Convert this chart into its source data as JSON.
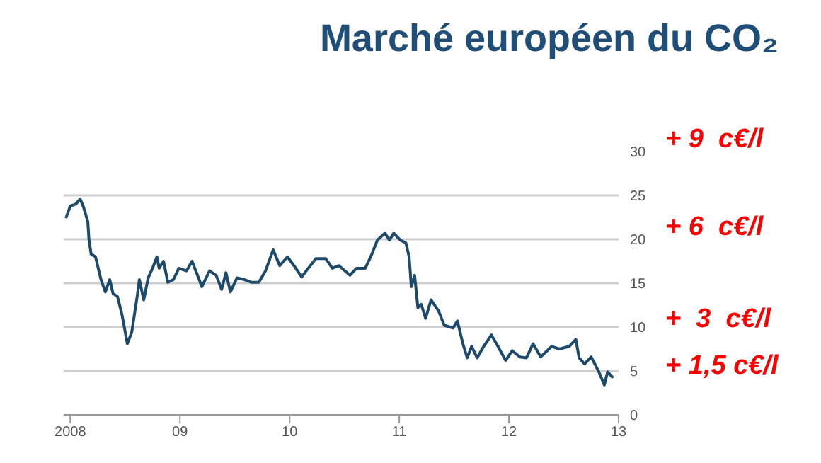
{
  "chart_data": {
    "type": "line",
    "title": "Marché européen du CO₂",
    "x": [
      2007.96,
      2008.0,
      2008.05,
      2008.09,
      2008.12,
      2008.16,
      2008.17,
      2008.19,
      2008.23,
      2008.28,
      2008.32,
      2008.36,
      2008.39,
      2008.43,
      2008.47,
      2008.49,
      2008.52,
      2008.56,
      2008.58,
      2008.61,
      2008.63,
      2008.67,
      2008.71,
      2008.75,
      2008.79,
      2008.81,
      2008.85,
      2008.89,
      2008.94,
      2008.99,
      2009.06,
      2009.11,
      2009.16,
      2009.2,
      2009.27,
      2009.33,
      2009.38,
      2009.42,
      2009.46,
      2009.52,
      2009.59,
      2009.65,
      2009.72,
      2009.78,
      2009.85,
      2009.91,
      2009.98,
      2010.04,
      2010.11,
      2010.17,
      2010.24,
      2010.33,
      2010.39,
      2010.45,
      2010.55,
      2010.61,
      2010.69,
      2010.75,
      2010.8,
      2010.87,
      2010.91,
      2010.95,
      2011.01,
      2011.06,
      2011.09,
      2011.11,
      2011.14,
      2011.17,
      2011.2,
      2011.24,
      2011.29,
      2011.36,
      2011.41,
      2011.49,
      2011.53,
      2011.58,
      2011.62,
      2011.66,
      2011.71,
      2011.77,
      2011.84,
      2011.9,
      2011.97,
      2012.03,
      2012.1,
      2012.16,
      2012.22,
      2012.29,
      2012.39,
      2012.46,
      2012.55,
      2012.61,
      2012.64,
      2012.69,
      2012.75,
      2012.82,
      2012.87,
      2012.9,
      2012.95
    ],
    "series": [
      {
        "color": "#1d4a6b",
        "values": [
          22.4,
          23.8,
          24,
          24.6,
          23.7,
          22,
          20,
          18.3,
          18,
          15.4,
          14,
          15.4,
          13.8,
          13.5,
          11.5,
          10.2,
          8.1,
          9.4,
          11,
          13.5,
          15.4,
          13.1,
          15.6,
          16.7,
          18,
          16.7,
          17.5,
          15.1,
          15.4,
          16.7,
          16.4,
          17.5,
          15.9,
          14.6,
          16.4,
          15.9,
          14.3,
          16.2,
          14,
          15.6,
          15.4,
          15.1,
          15.1,
          16.4,
          18.8,
          17,
          18,
          17,
          15.7,
          16.7,
          17.8,
          17.8,
          16.7,
          17,
          15.9,
          16.7,
          16.7,
          18.3,
          19.9,
          20.7,
          19.9,
          20.7,
          19.9,
          19.6,
          18,
          14.6,
          15.9,
          12.2,
          12.6,
          11,
          13.1,
          11.8,
          10.2,
          9.9,
          10.7,
          8.1,
          6.5,
          7.8,
          6.5,
          7.8,
          9.1,
          7.8,
          6.2,
          7.3,
          6.6,
          6.5,
          8.1,
          6.6,
          7.8,
          7.5,
          7.8,
          8.6,
          6.5,
          5.8,
          6.6,
          4.9,
          3.4,
          4.9,
          4.2
        ]
      }
    ],
    "xlim": [
      2007.94,
      2013.0
    ],
    "xticks": [
      {
        "value": 2008,
        "label": "2008"
      },
      {
        "value": 2009,
        "label": "09"
      },
      {
        "value": 2010,
        "label": "10"
      },
      {
        "value": 2011,
        "label": "11"
      },
      {
        "value": 2012,
        "label": "12"
      },
      {
        "value": 2013,
        "label": "13"
      }
    ],
    "ylim": [
      0,
      30
    ],
    "yticks": [
      0,
      5,
      10,
      15,
      20,
      25,
      30
    ],
    "grid": "y",
    "marker": "none",
    "line_style": "solid",
    "annotations": [
      "+ 9  c€/l",
      "+ 6  c€/l",
      "+  3  c€/l",
      "+ 1,5 c€/l"
    ]
  }
}
